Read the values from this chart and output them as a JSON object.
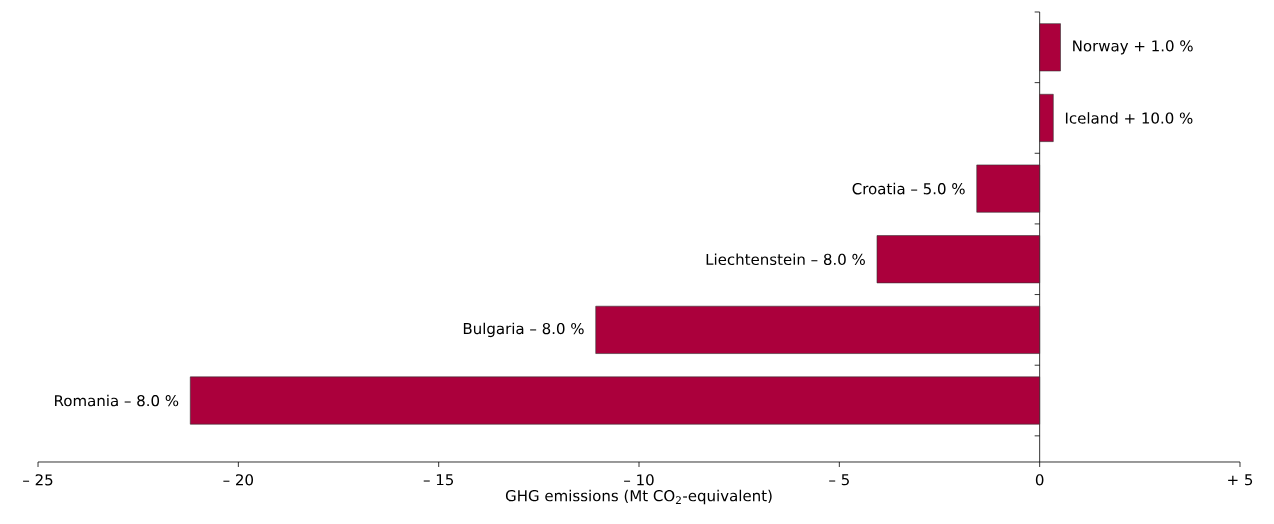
{
  "chart_data": {
    "type": "bar",
    "orientation": "horizontal",
    "categories": [
      "Norway  + 1.0 %",
      "Iceland  + 10.0 %",
      "Croatia  – 5.0 %",
      "Liechtenstein  – 8.0 %",
      "Bulgaria  – 8.0 %",
      "Romania  – 8.0 %"
    ],
    "values": [
      0.52,
      0.34,
      -1.57,
      -4.06,
      -11.08,
      -21.2
    ],
    "color": "#ab003c",
    "xlabel": "GHG emissions (Mt CO$_{2}$-equivalent)",
    "xlim": [
      -25,
      5
    ],
    "xticks": [
      {
        "value": -25,
        "label": "– 25"
      },
      {
        "value": -20,
        "label": "– 20"
      },
      {
        "value": -15,
        "label": "– 15"
      },
      {
        "value": -10,
        "label": "– 10"
      },
      {
        "value": -5,
        "label": "– 5"
      },
      0,
      {
        "value": 5,
        "label": "+ 5"
      }
    ]
  }
}
